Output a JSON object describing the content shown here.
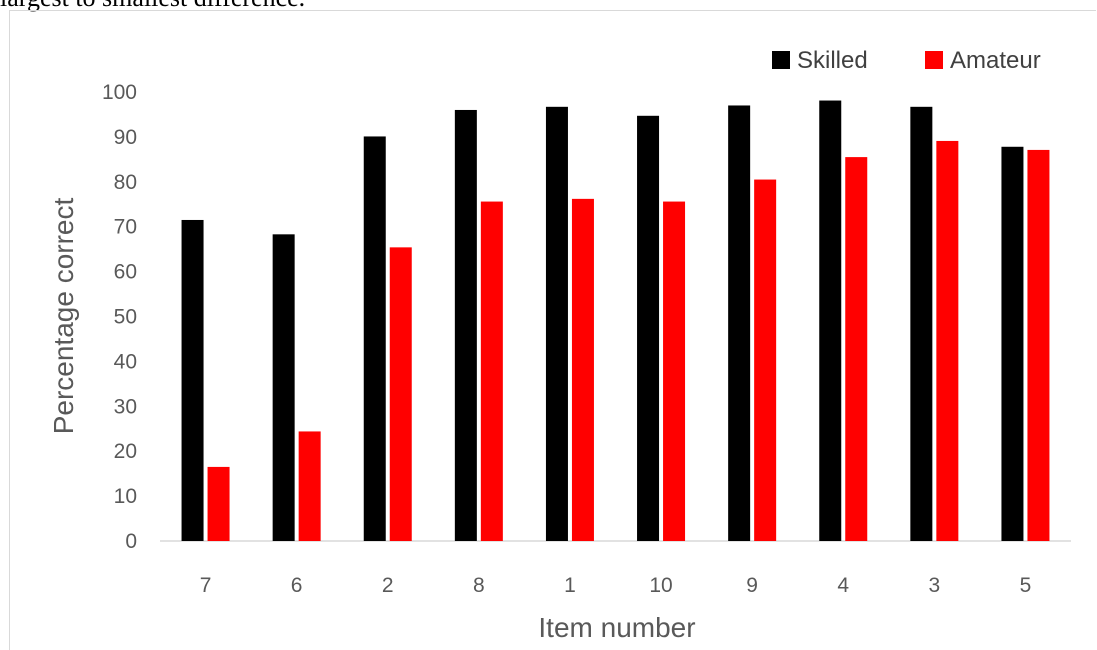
{
  "caption": {
    "text": "largest  to smallest difference."
  },
  "chart_data": {
    "type": "bar",
    "categories": [
      "7",
      "6",
      "2",
      "8",
      "1",
      "10",
      "9",
      "4",
      "3",
      "5"
    ],
    "series": [
      {
        "name": "Skilled",
        "color": "#000000",
        "values": [
          71.5,
          68.3,
          90.1,
          96.0,
          96.7,
          94.7,
          97.0,
          98.1,
          96.7,
          87.8
        ]
      },
      {
        "name": "Amateur",
        "color": "#ff0000",
        "values": [
          16.5,
          24.4,
          65.4,
          75.6,
          76.2,
          75.6,
          80.5,
          85.5,
          89.1,
          87.1
        ]
      }
    ],
    "xlabel": "Item number",
    "ylabel": "Percentage correct",
    "ylim": [
      0,
      100
    ],
    "ytick_step": 10,
    "grid": false,
    "legend_position": "top-right"
  }
}
